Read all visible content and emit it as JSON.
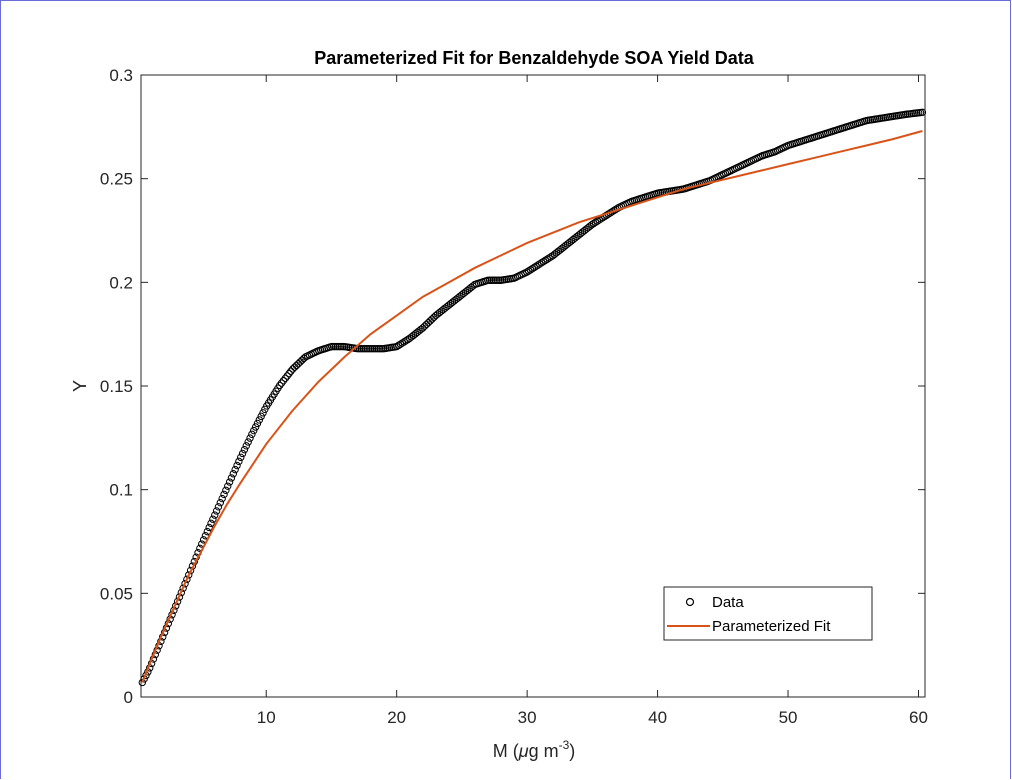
{
  "chart_data": {
    "type": "line",
    "title": "Parameterized Fit for Benzaldehyde SOA Yield Data",
    "xlabel_parts": {
      "base": "M (",
      "mu": "μ",
      "unit": "g m",
      "sup": "-3",
      "close": ")"
    },
    "ylabel": "Y",
    "xlim": [
      0.4,
      60.5
    ],
    "ylim": [
      0,
      0.3
    ],
    "xticks": [
      10,
      20,
      30,
      40,
      50,
      60
    ],
    "xtick_labels": [
      "10",
      "20",
      "30",
      "40",
      "50",
      "60"
    ],
    "yticks": [
      0,
      0.05,
      0.1,
      0.15,
      0.2,
      0.25,
      0.3
    ],
    "ytick_labels": [
      "0",
      "0.05",
      "0.1",
      "0.15",
      "0.2",
      "0.25",
      "0.3"
    ],
    "legend_position": "bottom-right",
    "series": [
      {
        "name": "Data",
        "style": "markers",
        "marker": "circle-open",
        "color": "#000000",
        "x": [
          0.5,
          1,
          2,
          3,
          4,
          5,
          6,
          7,
          8,
          9,
          10,
          11,
          12,
          13,
          14,
          15,
          16,
          17,
          18,
          19,
          20,
          21,
          22,
          23,
          24,
          25,
          26,
          27,
          28,
          29,
          30,
          31,
          32,
          33,
          34,
          35,
          36,
          37,
          38,
          39,
          40,
          41,
          42,
          43,
          44,
          45,
          46,
          47,
          48,
          49,
          50,
          51,
          52,
          53,
          54,
          55,
          56,
          57,
          58,
          59,
          60.3
        ],
        "y": [
          0.007,
          0.013,
          0.028,
          0.043,
          0.058,
          0.073,
          0.087,
          0.101,
          0.115,
          0.128,
          0.14,
          0.15,
          0.158,
          0.164,
          0.167,
          0.169,
          0.169,
          0.168,
          0.168,
          0.168,
          0.169,
          0.173,
          0.178,
          0.184,
          0.189,
          0.194,
          0.199,
          0.201,
          0.201,
          0.202,
          0.205,
          0.209,
          0.213,
          0.218,
          0.223,
          0.228,
          0.232,
          0.236,
          0.239,
          0.241,
          0.243,
          0.244,
          0.245,
          0.247,
          0.249,
          0.252,
          0.255,
          0.258,
          0.261,
          0.263,
          0.266,
          0.268,
          0.27,
          0.272,
          0.274,
          0.276,
          0.278,
          0.279,
          0.28,
          0.281,
          0.282
        ]
      },
      {
        "name": "Parameterized Fit",
        "style": "line",
        "color": "#d95319",
        "x": [
          0.5,
          1,
          2,
          3,
          4,
          5,
          6,
          7,
          8,
          10,
          12,
          14,
          16,
          18,
          20,
          22,
          24,
          26,
          28,
          30,
          32,
          34,
          36,
          38,
          40,
          42,
          44,
          46,
          48,
          50,
          52,
          54,
          56,
          58,
          60.3
        ],
        "y": [
          0.007,
          0.015,
          0.03,
          0.044,
          0.058,
          0.07,
          0.082,
          0.093,
          0.103,
          0.122,
          0.138,
          0.152,
          0.164,
          0.175,
          0.184,
          0.193,
          0.2,
          0.207,
          0.213,
          0.219,
          0.224,
          0.229,
          0.233,
          0.237,
          0.241,
          0.245,
          0.248,
          0.251,
          0.254,
          0.257,
          0.26,
          0.263,
          0.266,
          0.269,
          0.273
        ]
      }
    ]
  }
}
